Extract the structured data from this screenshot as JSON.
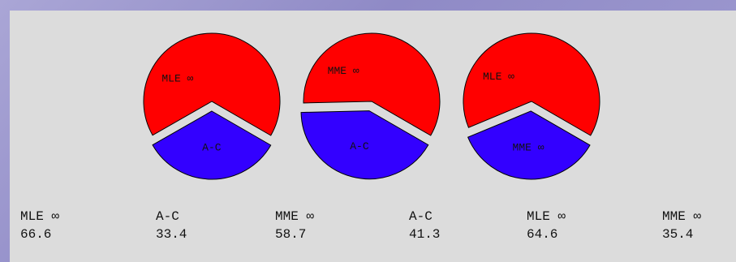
{
  "colors": {
    "panel": "#dcdcdc",
    "slice_a": "#ff0000",
    "slice_b": "#3300ff",
    "outline": "#000000"
  },
  "chart_data": [
    {
      "type": "pie",
      "slices": [
        {
          "label": "MLE ∞",
          "value": 66.6,
          "color": "#ff0000"
        },
        {
          "label": "A-C",
          "value": 33.4,
          "color": "#3300ff"
        }
      ]
    },
    {
      "type": "pie",
      "slices": [
        {
          "label": "MME ∞",
          "value": 58.7,
          "color": "#ff0000"
        },
        {
          "label": "A-C",
          "value": 41.3,
          "color": "#3300ff"
        }
      ]
    },
    {
      "type": "pie",
      "slices": [
        {
          "label": "MLE ∞",
          "value": 64.6,
          "color": "#ff0000"
        },
        {
          "label": "MME ∞",
          "value": 35.4,
          "color": "#3300ff"
        }
      ]
    }
  ],
  "stats": [
    {
      "label": "MLE ∞",
      "value": "66.6"
    },
    {
      "label": "A-C",
      "value": "33.4"
    },
    {
      "label": "MME ∞",
      "value": "58.7"
    },
    {
      "label": "A-C",
      "value": "41.3"
    },
    {
      "label": "MLE ∞",
      "value": "64.6"
    },
    {
      "label": "MME ∞",
      "value": "35.4"
    }
  ]
}
